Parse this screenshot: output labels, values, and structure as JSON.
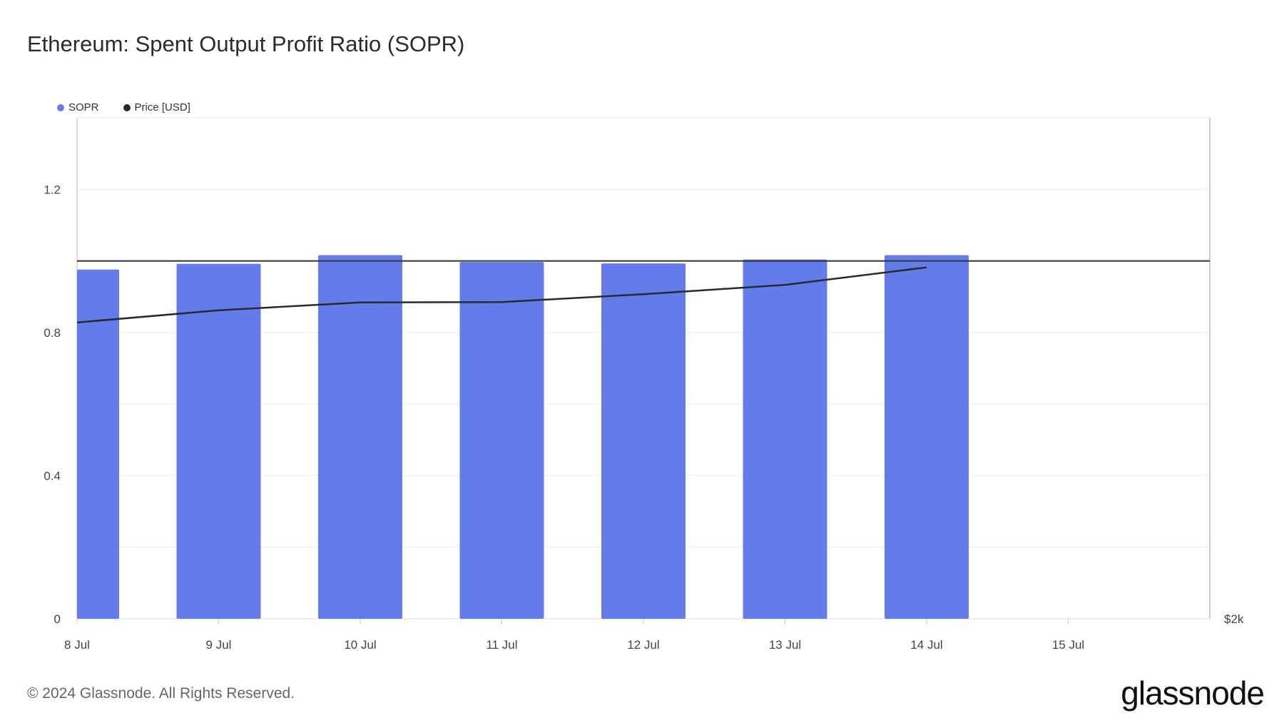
{
  "header": {
    "title": "Ethereum: Spent Output Profit Ratio (SOPR)"
  },
  "legend": [
    {
      "label": "SOPR",
      "color": "#647ceb"
    },
    {
      "label": "Price [USD]",
      "color": "#2a2a2a"
    }
  ],
  "footer": {
    "copyright": "© 2024 Glassnode. All Rights Reserved.",
    "brand": "glassnode"
  },
  "chart_data": {
    "type": "bar",
    "title": "Ethereum: Spent Output Profit Ratio (SOPR)",
    "categories": [
      "8 Jul",
      "9 Jul",
      "10 Jul",
      "11 Jul",
      "12 Jul",
      "13 Jul",
      "14 Jul",
      "15 Jul"
    ],
    "ylim": [
      0,
      1.4
    ],
    "y_ticks": [
      0,
      0.4,
      0.8,
      1.2
    ],
    "y_tick_labels": [
      "0",
      "0.4",
      "0.8",
      "1.2"
    ],
    "right_axis_label": "$2k",
    "reference_line": 1.0,
    "series": [
      {
        "name": "SOPR",
        "type": "bar",
        "values": [
          0.976,
          0.992,
          1.016,
          0.997,
          0.993,
          1.004,
          1.016,
          null
        ]
      },
      {
        "name": "Price [USD]",
        "type": "line",
        "values": [
          0.828,
          0.862,
          0.884,
          0.885,
          0.907,
          0.933,
          0.982,
          null
        ]
      }
    ]
  }
}
